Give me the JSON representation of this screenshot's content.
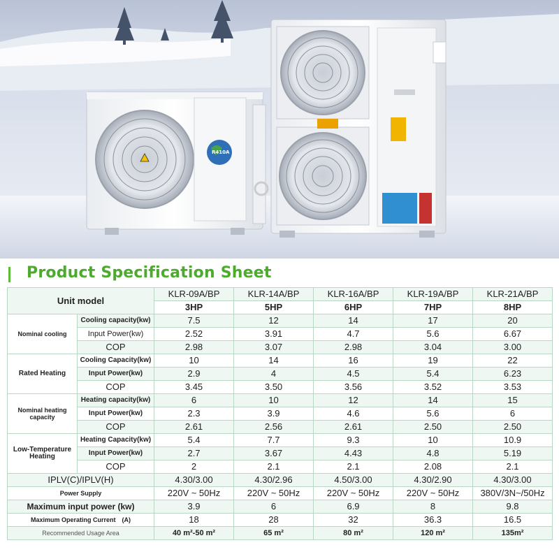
{
  "heading": "Product Specification Sheet",
  "hero_badge": "R410A",
  "table": {
    "unit_model_label": "Unit model",
    "models": [
      "KLR-09A/BP",
      "KLR-14A/BP",
      "KLR-16A/BP",
      "KLR-19A/BP",
      "KLR-21A/BP"
    ],
    "hp": [
      "3HP",
      "5HP",
      "6HP",
      "7HP",
      "8HP"
    ],
    "groups": [
      {
        "label": "Nominal cooling",
        "rows": [
          {
            "label": "Cooling capacity(kw)",
            "values": [
              "7.5",
              "12",
              "14",
              "17",
              "20"
            ]
          },
          {
            "label": "Input Power(kw)",
            "values": [
              "2.52",
              "3.91",
              "4.7",
              "5.6",
              "6.67"
            ]
          },
          {
            "label": "COP",
            "values": [
              "2.98",
              "3.07",
              "2.98",
              "3.04",
              "3.00"
            ]
          }
        ]
      },
      {
        "label": "Rated Heating",
        "rows": [
          {
            "label": "Cooling Capacity(kw)",
            "values": [
              "10",
              "14",
              "16",
              "19",
              "22"
            ]
          },
          {
            "label": "Input Power(kw)",
            "values": [
              "2.9",
              "4",
              "4.5",
              "5.4",
              "6.23"
            ]
          },
          {
            "label": "COP",
            "values": [
              "3.45",
              "3.50",
              "3.56",
              "3.52",
              "3.53"
            ]
          }
        ]
      },
      {
        "label": "Nominal heating capacity",
        "rows": [
          {
            "label": "Heating capacity(kw)",
            "values": [
              "6",
              "10",
              "12",
              "14",
              "15"
            ]
          },
          {
            "label": "Input Power(kw)",
            "values": [
              "2.3",
              "3.9",
              "4.6",
              "5.6",
              "6"
            ]
          },
          {
            "label": "COP",
            "values": [
              "2.61",
              "2.56",
              "2.61",
              "2.50",
              "2.50"
            ]
          }
        ]
      },
      {
        "label": "Low-Temperature Heating",
        "rows": [
          {
            "label": "Heating Capacity(kw)",
            "values": [
              "5.4",
              "7.7",
              "9.3",
              "10",
              "10.9"
            ]
          },
          {
            "label": "Input Power(kw)",
            "values": [
              "2.7",
              "3.67",
              "4.43",
              "4.8",
              "5.19"
            ]
          },
          {
            "label": "COP",
            "values": [
              "2",
              "2.1",
              "2.1",
              "2.08",
              "2.1"
            ]
          }
        ]
      }
    ],
    "bottom_rows": [
      {
        "label": "IPLV(C)/IPLV(H)",
        "values": [
          "4.30/3.00",
          "4.30/2.96",
          "4.50/3.00",
          "4.30/2.90",
          "4.30/3.00"
        ]
      },
      {
        "label": "Power Supply",
        "values": [
          "220V ~ 50Hz",
          "220V ~ 50Hz",
          "220V ~ 50Hz",
          "220V ~ 50Hz",
          "380V/3N~/50Hz"
        ]
      },
      {
        "label": "Maximum input power (kw)",
        "values": [
          "3.9",
          "6",
          "6.9",
          "8",
          "9.8"
        ]
      },
      {
        "label": "Maximum Operating Current　(A)",
        "values": [
          "18",
          "28",
          "32",
          "36.3",
          "16.5"
        ]
      },
      {
        "label": "Recommended Usage Area",
        "values": [
          "40 m²-50 m²",
          "65 m²",
          "80 m²",
          "120 m²",
          "135m²"
        ]
      }
    ]
  }
}
